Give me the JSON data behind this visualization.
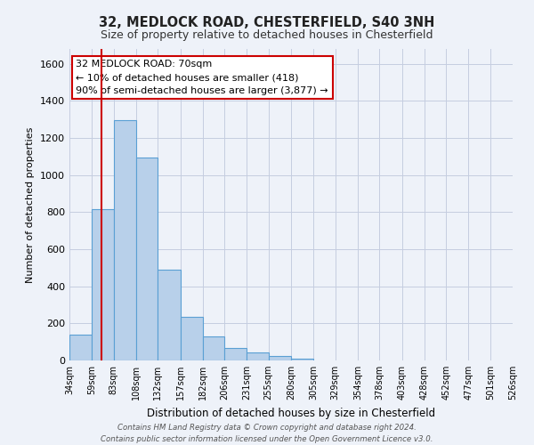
{
  "title": "32, MEDLOCK ROAD, CHESTERFIELD, S40 3NH",
  "subtitle": "Size of property relative to detached houses in Chesterfield",
  "xlabel": "Distribution of detached houses by size in Chesterfield",
  "ylabel": "Number of detached properties",
  "bar_color": "#b8d0ea",
  "bar_edge_color": "#5a9fd4",
  "background_color": "#eef2f9",
  "grid_color": "#c5cde0",
  "vline_x": 70,
  "vline_color": "#cc0000",
  "bin_edges": [
    34,
    59,
    83,
    108,
    132,
    157,
    182,
    206,
    231,
    255,
    280,
    305,
    329,
    354,
    378,
    403,
    428,
    452,
    477,
    501,
    526
  ],
  "bar_heights": [
    140,
    815,
    1295,
    1095,
    490,
    235,
    130,
    65,
    45,
    25,
    10,
    0,
    0,
    0,
    0,
    0,
    0,
    0,
    0,
    0
  ],
  "ylim": [
    0,
    1680
  ],
  "yticks": [
    0,
    200,
    400,
    600,
    800,
    1000,
    1200,
    1400,
    1600
  ],
  "annotation_title": "32 MEDLOCK ROAD: 70sqm",
  "annotation_line1": "← 10% of detached houses are smaller (418)",
  "annotation_line2": "90% of semi-detached houses are larger (3,877) →",
  "annotation_box_color": "#ffffff",
  "annotation_box_edge_color": "#cc0000",
  "footer_line1": "Contains HM Land Registry data © Crown copyright and database right 2024.",
  "footer_line2": "Contains public sector information licensed under the Open Government Licence v3.0.",
  "tick_labels": [
    "34sqm",
    "59sqm",
    "83sqm",
    "108sqm",
    "132sqm",
    "157sqm",
    "182sqm",
    "206sqm",
    "231sqm",
    "255sqm",
    "280sqm",
    "305sqm",
    "329sqm",
    "354sqm",
    "378sqm",
    "403sqm",
    "428sqm",
    "452sqm",
    "477sqm",
    "501sqm",
    "526sqm"
  ]
}
